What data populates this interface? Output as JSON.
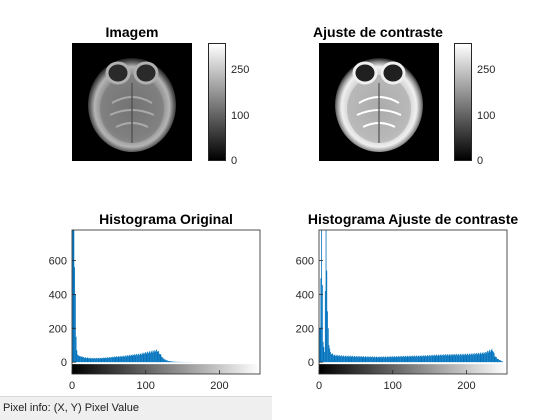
{
  "panels": {
    "image1": {
      "title": "Imagem",
      "colorbar_ticks": [
        "250",
        "100",
        "0"
      ]
    },
    "image2": {
      "title": "Ajuste de contraste",
      "colorbar_ticks": [
        "250",
        "100",
        "0"
      ]
    }
  },
  "statusbar": {
    "text": "Pixel info: (X, Y)  Pixel Value"
  },
  "colors": {
    "bar": "#0072BD",
    "axis": "#262626",
    "background": "#ffffff"
  },
  "chart_data": [
    {
      "type": "bar",
      "title": "Histograma Original",
      "xlabel": "",
      "ylabel": "",
      "xlim": [
        0,
        255
      ],
      "ylim": [
        -70,
        780
      ],
      "xticks": [
        0,
        100,
        200
      ],
      "yticks": [
        0,
        200,
        400,
        600
      ],
      "x_colorbar": "grayscale 0-255",
      "series": [
        {
          "points": [
            [
              1,
              790
            ],
            [
              2,
              780
            ],
            [
              3,
              560
            ],
            [
              4,
              400
            ],
            [
              5,
              150
            ],
            [
              6,
              70
            ],
            [
              7,
              45
            ],
            [
              8,
              40
            ],
            [
              10,
              35
            ],
            [
              15,
              30
            ],
            [
              20,
              28
            ],
            [
              25,
              25
            ],
            [
              30,
              25
            ],
            [
              40,
              26
            ],
            [
              50,
              30
            ],
            [
              60,
              35
            ],
            [
              70,
              38
            ],
            [
              80,
              45
            ],
            [
              90,
              50
            ],
            [
              100,
              60
            ],
            [
              110,
              70
            ],
            [
              115,
              75
            ],
            [
              118,
              60
            ],
            [
              120,
              45
            ],
            [
              123,
              25
            ],
            [
              126,
              15
            ],
            [
              130,
              8
            ],
            [
              135,
              4
            ],
            [
              140,
              2
            ],
            [
              150,
              1
            ],
            [
              170,
              0
            ],
            [
              255,
              0
            ]
          ]
        }
      ]
    },
    {
      "type": "bar",
      "title": "Histograma Ajuste de contraste",
      "xlabel": "",
      "ylabel": "",
      "xlim": [
        0,
        255
      ],
      "ylim": [
        -70,
        780
      ],
      "xticks": [
        0,
        100,
        200
      ],
      "yticks": [
        0,
        200,
        400,
        600
      ],
      "x_colorbar": "grayscale 0-255",
      "series": [
        {
          "points": [
            [
              1,
              200
            ],
            [
              3,
              790
            ],
            [
              5,
              120
            ],
            [
              7,
              60
            ],
            [
              9,
              780
            ],
            [
              11,
              300
            ],
            [
              13,
              100
            ],
            [
              15,
              60
            ],
            [
              20,
              45
            ],
            [
              30,
              40
            ],
            [
              40,
              38
            ],
            [
              60,
              35
            ],
            [
              80,
              33
            ],
            [
              100,
              35
            ],
            [
              120,
              38
            ],
            [
              140,
              40
            ],
            [
              160,
              45
            ],
            [
              180,
              48
            ],
            [
              200,
              50
            ],
            [
              215,
              55
            ],
            [
              225,
              60
            ],
            [
              232,
              75
            ],
            [
              235,
              80
            ],
            [
              238,
              40
            ],
            [
              242,
              20
            ],
            [
              246,
              10
            ],
            [
              250,
              0
            ],
            [
              255,
              0
            ]
          ]
        }
      ]
    }
  ]
}
